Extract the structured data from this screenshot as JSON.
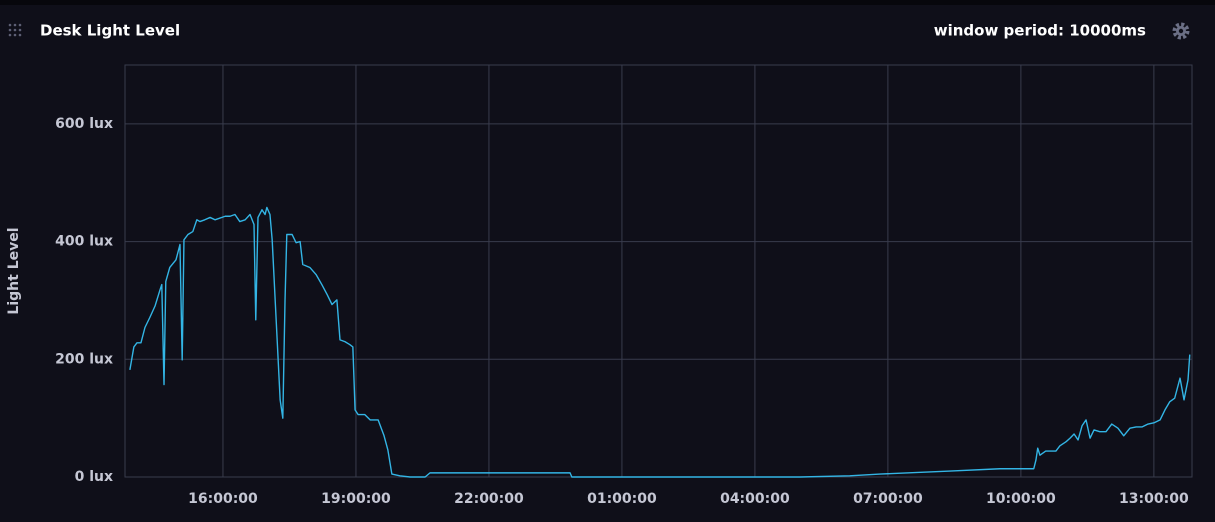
{
  "chart_data": {
    "type": "line",
    "title": "Desk Light Level",
    "subtitle": "window period: 10000ms",
    "y_label": "Light Level",
    "color": "#33b5e5",
    "grid": true,
    "xlim": [
      13.79,
      37.86
    ],
    "ylim": [
      0,
      700
    ],
    "xticks": [
      {
        "value": 16,
        "label": "16:00:00"
      },
      {
        "value": 19,
        "label": "19:00:00"
      },
      {
        "value": 22,
        "label": "22:00:00"
      },
      {
        "value": 25,
        "label": "01:00:00"
      },
      {
        "value": 28,
        "label": "04:00:00"
      },
      {
        "value": 31,
        "label": "07:00:00"
      },
      {
        "value": 34,
        "label": "10:00:00"
      },
      {
        "value": 37,
        "label": "13:00:00"
      }
    ],
    "yticks": [
      {
        "value": 0,
        "label": "0 lux"
      },
      {
        "value": 200,
        "label": "200 lux"
      },
      {
        "value": 400,
        "label": "400 lux"
      },
      {
        "value": 600,
        "label": "600 lux"
      }
    ],
    "x": [
      13.9,
      13.99,
      14.06,
      14.15,
      14.24,
      14.35,
      14.47,
      14.58,
      14.62,
      14.67,
      14.71,
      14.8,
      14.94,
      15.03,
      15.08,
      15.12,
      15.21,
      15.32,
      15.41,
      15.48,
      15.59,
      15.71,
      15.82,
      16.05,
      16.16,
      16.27,
      16.38,
      16.5,
      16.61,
      16.7,
      16.74,
      16.79,
      16.88,
      16.95,
      16.99,
      17.06,
      17.11,
      17.2,
      17.29,
      17.35,
      17.4,
      17.44,
      17.56,
      17.65,
      17.74,
      17.8,
      17.96,
      18.1,
      18.23,
      18.35,
      18.46,
      18.57,
      18.64,
      18.75,
      18.86,
      18.93,
      18.98,
      19.05,
      19.2,
      19.32,
      19.5,
      19.63,
      19.72,
      19.81,
      19.99,
      20.22,
      20.56,
      20.67,
      22.25,
      23.83,
      23.87,
      25.63,
      29.02,
      30.14,
      30.82,
      32.4,
      33.53,
      34.29,
      34.34,
      34.38,
      34.43,
      34.56,
      34.79,
      34.88,
      35.02,
      35.11,
      35.2,
      35.29,
      35.38,
      35.47,
      35.56,
      35.65,
      35.78,
      35.92,
      36.05,
      36.19,
      36.32,
      36.46,
      36.6,
      36.73,
      36.87,
      37.0,
      37.14,
      37.25,
      37.36,
      37.47,
      37.59,
      37.68,
      37.77,
      37.81
    ],
    "values": [
      182,
      221,
      228,
      228,
      254,
      271,
      291,
      318,
      327,
      157,
      332,
      356,
      369,
      395,
      199,
      403,
      412,
      417,
      437,
      434,
      437,
      441,
      437,
      443,
      443,
      446,
      434,
      437,
      446,
      429,
      267,
      441,
      454,
      446,
      458,
      446,
      403,
      267,
      131,
      100,
      301,
      412,
      412,
      398,
      400,
      361,
      356,
      344,
      327,
      310,
      293,
      301,
      233,
      230,
      225,
      221,
      114,
      106,
      106,
      97,
      97,
      71,
      46,
      5,
      2,
      0,
      0,
      7,
      7,
      7,
      0,
      0,
      0,
      2,
      5,
      10,
      14,
      14,
      29,
      49,
      37,
      44,
      44,
      53,
      60,
      66,
      73,
      63,
      87,
      97,
      66,
      80,
      77,
      77,
      90,
      83,
      70,
      83,
      85,
      85,
      90,
      92,
      97,
      114,
      128,
      134,
      168,
      131,
      165,
      208
    ]
  }
}
